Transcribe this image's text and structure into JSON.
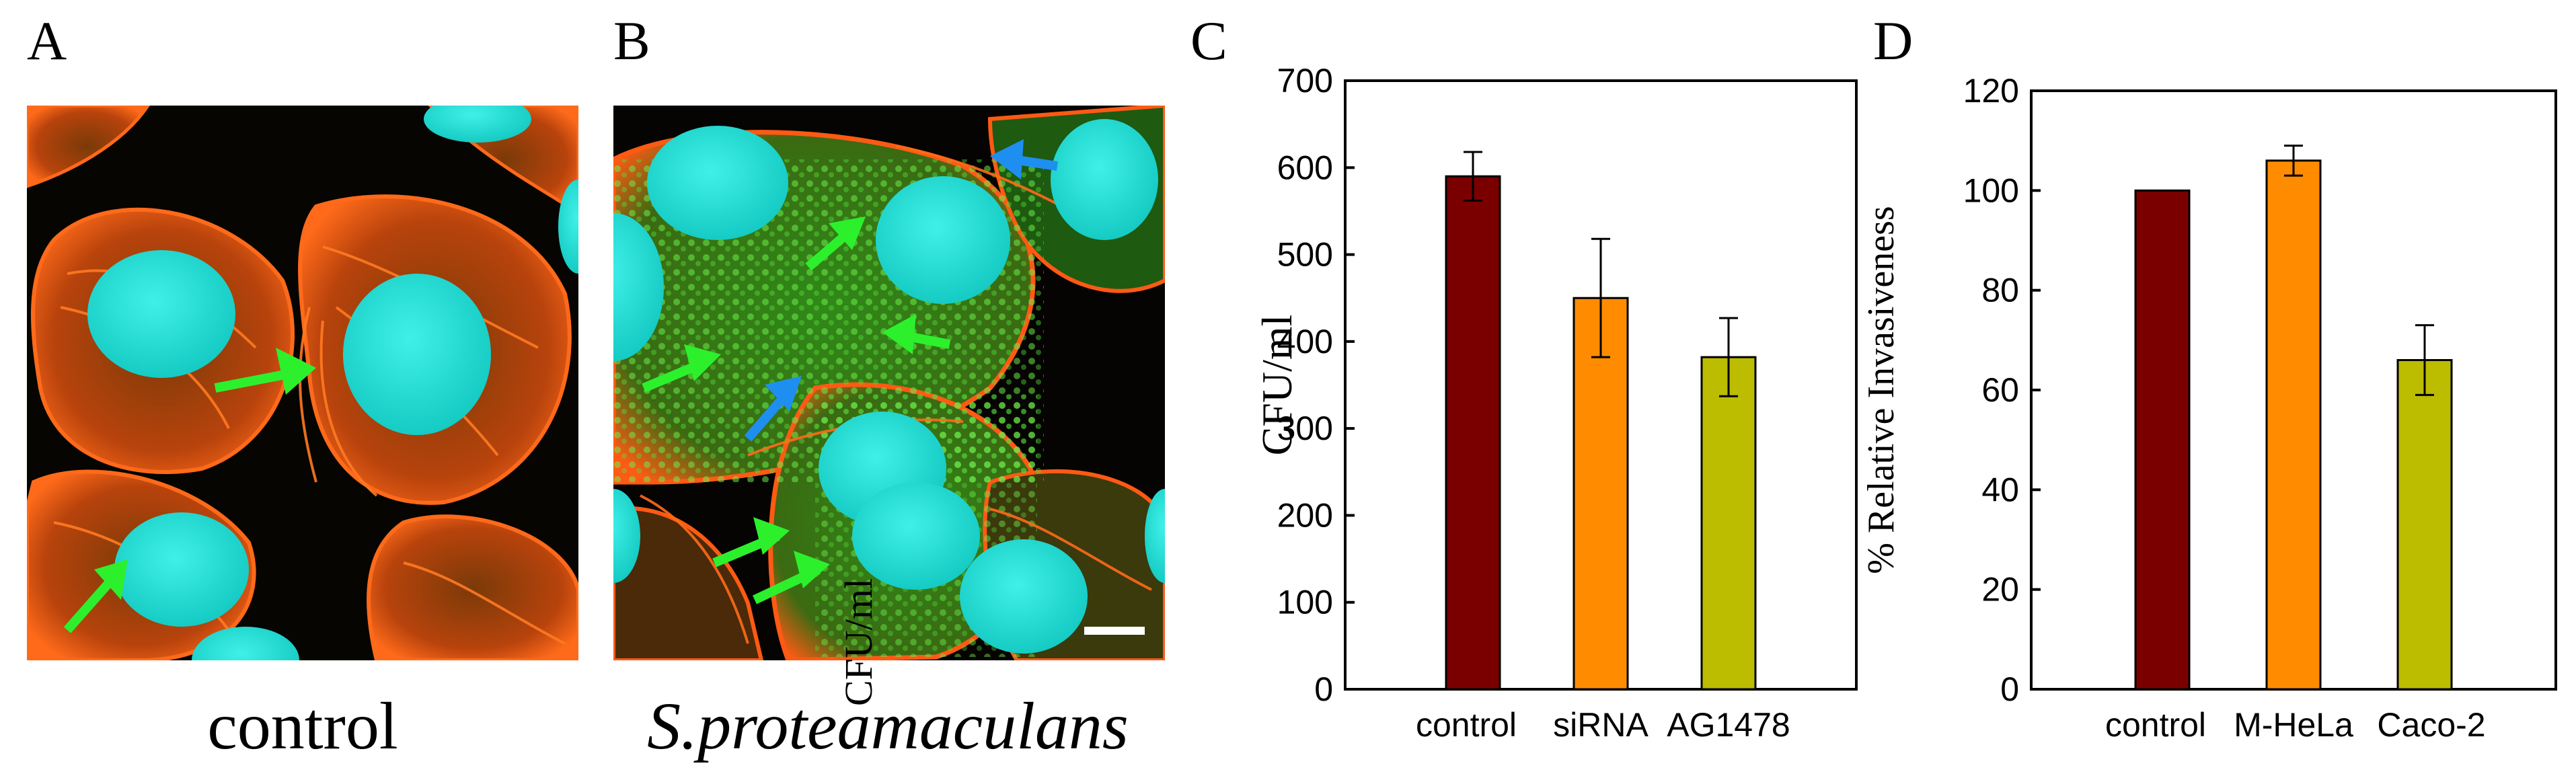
{
  "panels": {
    "A": {
      "letter": "A",
      "caption": "control"
    },
    "B": {
      "letter": "B",
      "caption": "S.proteamaculans",
      "overlay_label": "CFU/ml"
    },
    "C": {
      "letter": "C"
    },
    "D": {
      "letter": "D"
    }
  },
  "colors": {
    "actin": "#ff5a14",
    "nucleus": "#19d8d0",
    "bacteria": "#3fdc2a",
    "arrow_green": "#2cf02c",
    "arrow_blue": "#1e8ff0",
    "bar_control": "#7a0000",
    "bar_orange": "#ff8c00",
    "bar_olive": "#bcbc00"
  },
  "chart_data": [
    {
      "type": "bar",
      "categories": [
        "control",
        "siRNA",
        "AG1478"
      ],
      "values": [
        590,
        450,
        382
      ],
      "errors": [
        28,
        68,
        45
      ],
      "title": "",
      "xlabel": "",
      "ylabel": "CFU/ml",
      "ylim": [
        0,
        700
      ],
      "yticks": [
        "0",
        "100",
        "200",
        "300",
        "400",
        "500",
        "600",
        "700"
      ],
      "bar_colors": [
        "#7a0000",
        "#ff8c00",
        "#bcbc00"
      ]
    },
    {
      "type": "bar",
      "categories": [
        "control",
        "M-HeLa",
        "Caco-2"
      ],
      "values": [
        100,
        106,
        66
      ],
      "errors": [
        0,
        3,
        7
      ],
      "title": "",
      "xlabel": "",
      "ylabel": "% Relative Invasiveness",
      "ylim": [
        0,
        120
      ],
      "yticks": [
        "0",
        "20",
        "40",
        "60",
        "80",
        "100",
        "120"
      ],
      "bar_colors": [
        "#7a0000",
        "#ff8c00",
        "#bcbc00"
      ]
    }
  ]
}
